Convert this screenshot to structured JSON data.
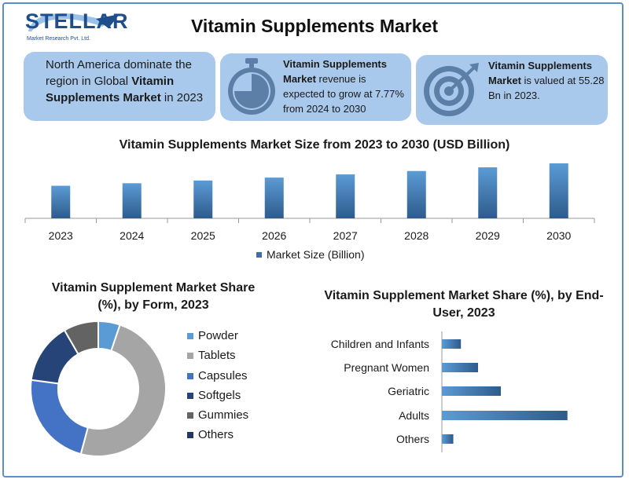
{
  "brand": {
    "logo_word": "STELLAR",
    "logo_sub": "Market Research Pvt. Ltd.",
    "color": "#1f4e8c"
  },
  "title": "Vitamin Supplements Market",
  "info_boxes": [
    {
      "pre": "North America dominate the region in Global ",
      "bold": "Vitamin Supplements Market",
      "post": " in 2023"
    },
    {
      "icon": "stopwatch-icon",
      "bold": "Vitamin Supplements Market",
      "post": " revenue is expected to grow at 7.77% from 2024 to 2030"
    },
    {
      "icon": "target-icon",
      "bold": "Vitamin Supplements Market",
      "post": " is valued at 55.28 Bn in 2023."
    }
  ],
  "colors": {
    "box_bg": "#a9c9ec",
    "bar_top": "#5b9bd5",
    "bar_bottom": "#2e5b8c"
  },
  "chart_data": [
    {
      "type": "bar",
      "title": "Vitamin Supplements Market Size from 2023 to 2030 (USD Billion)",
      "categories": [
        "2023",
        "2024",
        "2025",
        "2026",
        "2027",
        "2028",
        "2029",
        "2030"
      ],
      "series": [
        {
          "name": "Market Size (Billion)",
          "values": [
            55.28,
            59.58,
            64.21,
            69.19,
            74.57,
            80.36,
            86.61,
            93.34
          ]
        }
      ],
      "ylim": [
        0,
        100
      ],
      "grid": false,
      "legend": "bottom"
    },
    {
      "type": "pie",
      "title": "Vitamin Supplement Market Share (%), by Form, 2023",
      "labels": [
        "Powder",
        "Tablets",
        "Capsules",
        "Softgels",
        "Gummies",
        "Others"
      ],
      "values": [
        5,
        47,
        22,
        14,
        8,
        0
      ],
      "colors": [
        "#5b9bd5",
        "#a5a5a5",
        "#4472c4",
        "#264478",
        "#636363",
        "#1f3864"
      ],
      "legend": "right"
    },
    {
      "type": "bar",
      "orientation": "horizontal",
      "title": "Vitamin Supplement Market Share (%), by End-User, 2023",
      "categories": [
        "Children and Infants",
        "Pregnant Women",
        "Geriatric",
        "Adults",
        "Others"
      ],
      "values": [
        10,
        19,
        31,
        66,
        6
      ]
    }
  ]
}
